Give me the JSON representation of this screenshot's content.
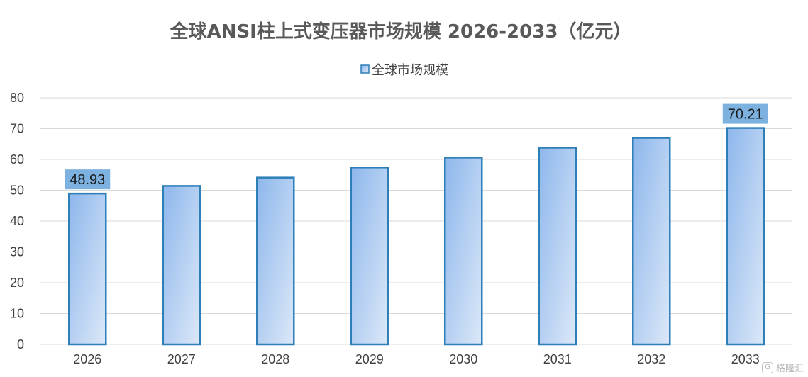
{
  "chart_data": {
    "type": "bar",
    "title": "全球ANSI柱上式变压器市场规模 2026-2033（亿元）",
    "xlabel": "",
    "ylabel": "",
    "legend_position": "top-center",
    "grid": true,
    "ylim": [
      0,
      80
    ],
    "yticks": [
      0,
      10,
      20,
      30,
      40,
      50,
      60,
      70,
      80
    ],
    "categories": [
      "2026",
      "2027",
      "2028",
      "2029",
      "2030",
      "2031",
      "2032",
      "2033"
    ],
    "series": [
      {
        "name": "全球市场规模",
        "values": [
          48.93,
          51.4,
          54.1,
          57.4,
          60.6,
          63.8,
          67.0,
          70.21
        ],
        "color": "#2E7FB8"
      }
    ],
    "data_labels": [
      {
        "category": "2026",
        "text": "48.93"
      },
      {
        "category": "2033",
        "text": "70.21"
      }
    ]
  },
  "colors": {
    "bar_fill_top": "#8DB7EC",
    "bar_fill_bottom": "#DCE8F8",
    "bar_stroke": "#2E7FB8",
    "data_label_bg": "#7DB2E0",
    "grid": "#D9D9D9"
  },
  "watermark": {
    "icon": "logo-icon",
    "text": "格隆汇"
  }
}
